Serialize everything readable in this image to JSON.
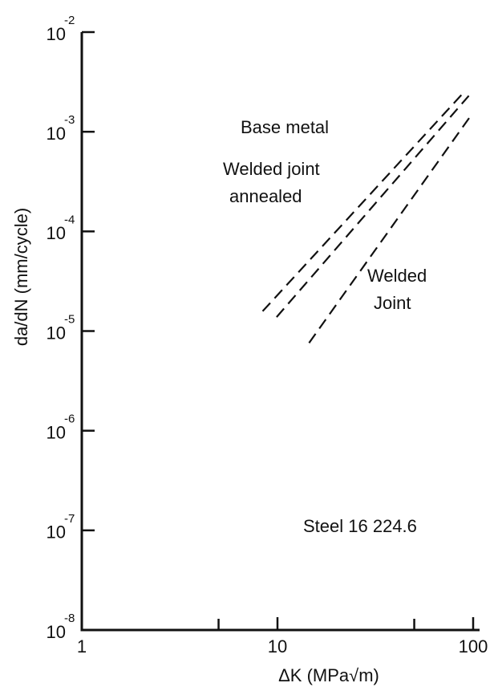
{
  "chart_data": {
    "type": "line",
    "xscale": "log",
    "yscale": "log",
    "x_label": "ΔK   (MPa√m)",
    "y_label": "da/dN   (mm/cycle)",
    "annotation": "Steel 16 224.6",
    "xlim": [
      1,
      100
    ],
    "ylim": [
      1e-08,
      0.01
    ],
    "xticks": [
      1,
      10,
      100
    ],
    "xminorticks": [
      5,
      50
    ],
    "yticks": [
      {
        "value": 1e-08,
        "label": "10",
        "exponent": "-8"
      },
      {
        "value": 1e-07,
        "label": "10",
        "exponent": "-7"
      },
      {
        "value": 1e-06,
        "label": "10",
        "exponent": "-6"
      },
      {
        "value": 1e-05,
        "label": "10",
        "exponent": "-5"
      },
      {
        "value": 0.0001,
        "label": "10",
        "exponent": "-4"
      },
      {
        "value": 0.001,
        "label": "10",
        "exponent": "-3"
      },
      {
        "value": 0.01,
        "label": "10",
        "exponent": "-2"
      }
    ],
    "grid": false,
    "series": [
      {
        "label_lines": [
          "Base metal"
        ],
        "color": "#111111",
        "x": [
          8.4,
          91
        ],
        "values": [
          1.58e-05,
          0.00257
        ]
      },
      {
        "label_lines": [
          "Welded joint",
          "annealed"
        ],
        "color": "#111111",
        "x": [
          9.9,
          95
        ],
        "values": [
          1.38e-05,
          0.0023
        ]
      },
      {
        "label_lines": [
          "Welded",
          "Joint"
        ],
        "color": "#111111",
        "x": [
          14.5,
          98
        ],
        "values": [
          7.6e-06,
          0.00148
        ]
      }
    ]
  }
}
